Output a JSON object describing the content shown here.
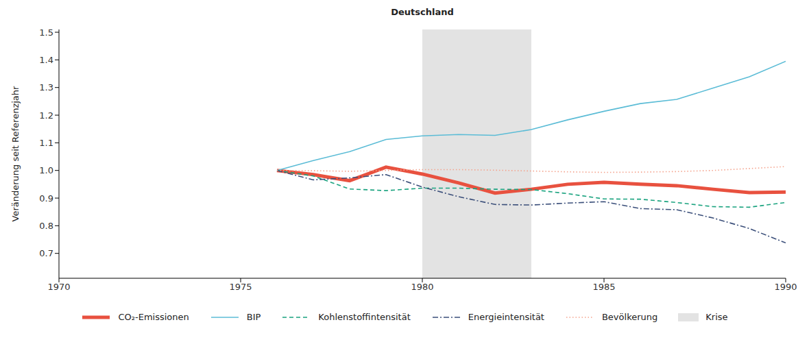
{
  "chart_data": {
    "type": "line",
    "title": "Deutschland",
    "y_label": "Veränderung seit Referenzjahr",
    "x": [
      1976,
      1977,
      1978,
      1979,
      1980,
      1981,
      1982,
      1983,
      1984,
      1985,
      1986,
      1987,
      1988,
      1989,
      1990
    ],
    "series": [
      {
        "name": "CO₂-Emissionen",
        "color": "#e8513f",
        "line_style": "solid",
        "values": [
          1.0,
          0.985,
          0.963,
          1.012,
          0.987,
          0.955,
          0.918,
          0.932,
          0.95,
          0.957,
          0.95,
          0.945,
          0.932,
          0.92,
          0.922
        ]
      },
      {
        "name": "BIP",
        "color": "#5bbcd6",
        "line_style": "solid",
        "values": [
          1.0,
          1.036,
          1.068,
          1.112,
          1.125,
          1.13,
          1.127,
          1.148,
          1.183,
          1.214,
          1.242,
          1.257,
          1.298,
          1.339,
          1.395
        ]
      },
      {
        "name": "Kohlenstoffintensität",
        "color": "#1aa37f",
        "line_style": "dashed",
        "values": [
          1.0,
          0.98,
          0.933,
          0.927,
          0.936,
          0.936,
          0.932,
          0.931,
          0.916,
          0.897,
          0.896,
          0.884,
          0.869,
          0.867,
          0.884
        ]
      },
      {
        "name": "Energieintensität",
        "color": "#3b4f7a",
        "line_style": "dashdot",
        "values": [
          1.0,
          0.966,
          0.973,
          0.985,
          0.94,
          0.905,
          0.877,
          0.875,
          0.882,
          0.887,
          0.862,
          0.858,
          0.828,
          0.79,
          0.738
        ]
      },
      {
        "name": "Bevölkerung",
        "color": "#f4a28c",
        "line_style": "dotted",
        "values": [
          1.0,
          0.999,
          0.997,
          1.0,
          1.003,
          1.003,
          1.001,
          0.998,
          0.995,
          0.993,
          0.994,
          0.996,
          1.0,
          1.007,
          1.014
        ]
      }
    ],
    "shaded_regions": [
      {
        "name": "Krise",
        "x1": 1980,
        "x2": 1983,
        "color": "#e3e3e3"
      }
    ],
    "xlim": [
      1970,
      1990
    ],
    "xticks": [
      1970,
      1975,
      1980,
      1985,
      1990
    ],
    "ylim": [
      0.61,
      1.51
    ],
    "yticks": [
      0.7,
      0.8,
      0.9,
      {
        "value": 1,
        "label": "1.0"
      },
      1.1,
      1.2,
      1.3,
      1.4,
      1.5
    ],
    "grid": false,
    "legend": "bottom"
  }
}
